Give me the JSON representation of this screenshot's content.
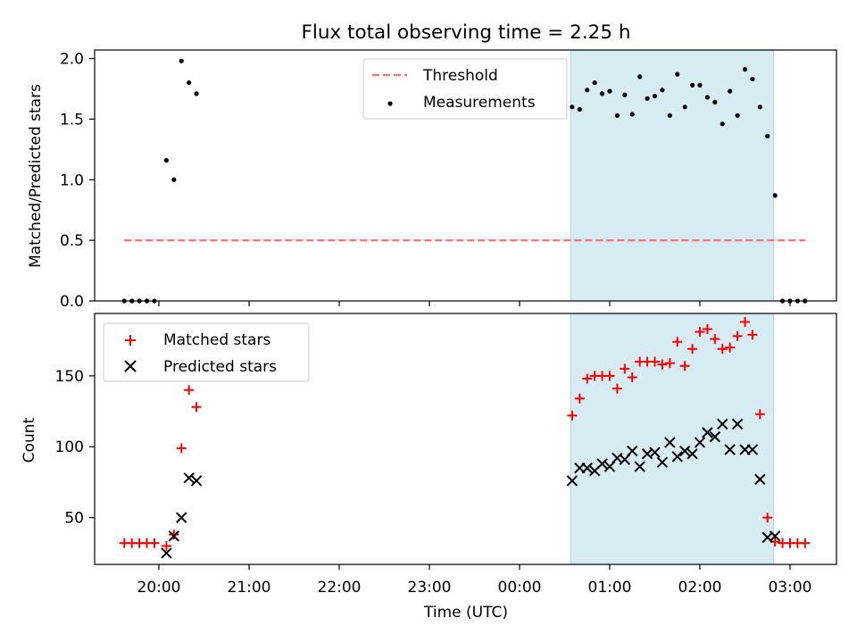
{
  "title": "Flux total observing time = 2.25 h",
  "colors": {
    "threshold": "#ff7070",
    "measurement": "#000000",
    "matched": "#ff0000",
    "predicted": "#000000",
    "span": "#add8e6"
  },
  "chart_data": [
    {
      "type": "scatter",
      "ylabel": "Matched/Predicted stars",
      "ylim": [
        0,
        2.07
      ],
      "yticks": [
        "0.0",
        "0.5",
        "1.0",
        "1.5",
        "2.0"
      ],
      "ytick_values": [
        0,
        0.5,
        1.0,
        1.5,
        2.0
      ],
      "legend_position": "upper center",
      "shaded_span": {
        "x_start": "00:34",
        "x_end": "02:49"
      },
      "threshold": {
        "name": "Threshold",
        "value": 0.5,
        "x_start": "19:37",
        "x_end": "03:10"
      },
      "series": [
        {
          "name": "Measurements",
          "x": [
            "19:37",
            "19:42",
            "19:47",
            "19:52",
            "19:57",
            "20:05",
            "20:10",
            "20:15",
            "20:20",
            "20:25",
            "20:30",
            "00:35",
            "00:40",
            "00:45",
            "00:50",
            "00:55",
            "01:00",
            "01:05",
            "01:10",
            "01:15",
            "01:20",
            "01:25",
            "01:30",
            "01:35",
            "01:40",
            "01:45",
            "01:50",
            "01:55",
            "02:00",
            "02:05",
            "02:10",
            "02:15",
            "02:20",
            "02:25",
            "02:30",
            "02:35",
            "02:40",
            "02:45",
            "02:50",
            "02:55",
            "03:00",
            "03:05",
            "03:10"
          ],
          "y": [
            0,
            0,
            0,
            0,
            0,
            1.16,
            1.0,
            1.98,
            1.8,
            1.71,
            null,
            1.6,
            1.58,
            1.74,
            1.8,
            1.71,
            1.73,
            1.53,
            1.7,
            1.54,
            1.85,
            1.67,
            1.69,
            1.74,
            1.53,
            1.87,
            1.6,
            1.78,
            1.78,
            1.68,
            1.64,
            1.46,
            1.73,
            1.53,
            1.91,
            1.83,
            1.6,
            1.36,
            0.87,
            0,
            0,
            0,
            0
          ]
        }
      ]
    },
    {
      "type": "scatter",
      "xlabel": "Time (UTC)",
      "ylabel": "Count",
      "ylim": [
        17,
        194
      ],
      "yticks": [
        "50",
        "100",
        "150"
      ],
      "ytick_values": [
        50,
        100,
        150
      ],
      "xticks": [
        "20:00",
        "21:00",
        "22:00",
        "23:00",
        "00:00",
        "01:00",
        "02:00",
        "03:00"
      ],
      "legend_position": "upper left",
      "shaded_span": {
        "x_start": "00:34",
        "x_end": "02:49"
      },
      "series": [
        {
          "name": "Matched stars",
          "x": [
            "19:37",
            "19:42",
            "19:47",
            "19:52",
            "19:57",
            "20:05",
            "20:10",
            "20:15",
            "20:20",
            "20:25",
            "00:35",
            "00:40",
            "00:45",
            "00:50",
            "00:55",
            "01:00",
            "01:05",
            "01:10",
            "01:15",
            "01:20",
            "01:25",
            "01:30",
            "01:35",
            "01:40",
            "01:45",
            "01:50",
            "01:55",
            "02:00",
            "02:05",
            "02:10",
            "02:15",
            "02:20",
            "02:25",
            "02:30",
            "02:35",
            "02:40",
            "02:45",
            "02:50",
            "02:55",
            "03:00",
            "03:05",
            "03:10"
          ],
          "y": [
            32,
            32,
            32,
            32,
            32,
            30,
            38,
            99,
            140,
            128,
            122,
            134,
            148,
            150,
            150,
            150,
            141,
            155,
            149,
            160,
            160,
            160,
            158,
            159,
            174,
            157,
            169,
            181,
            183,
            176,
            169,
            170,
            178,
            188,
            179,
            123,
            50,
            33,
            32,
            32,
            32,
            32
          ]
        },
        {
          "name": "Predicted stars",
          "x": [
            "20:05",
            "20:10",
            "20:15",
            "20:20",
            "20:25",
            "00:35",
            "00:40",
            "00:45",
            "00:50",
            "00:55",
            "01:00",
            "01:05",
            "01:10",
            "01:15",
            "01:20",
            "01:25",
            "01:30",
            "01:35",
            "01:40",
            "01:45",
            "01:50",
            "01:55",
            "02:00",
            "02:05",
            "02:10",
            "02:15",
            "02:20",
            "02:25",
            "02:30",
            "02:35",
            "02:40",
            "02:45",
            "02:50"
          ],
          "y": [
            25,
            37,
            50,
            78,
            76,
            76,
            85,
            85,
            83,
            88,
            86,
            92,
            91,
            97,
            86,
            95,
            96,
            89,
            103,
            93,
            97,
            95,
            103,
            110,
            107,
            116,
            98,
            116,
            98,
            98,
            77,
            36,
            37
          ]
        }
      ]
    }
  ]
}
